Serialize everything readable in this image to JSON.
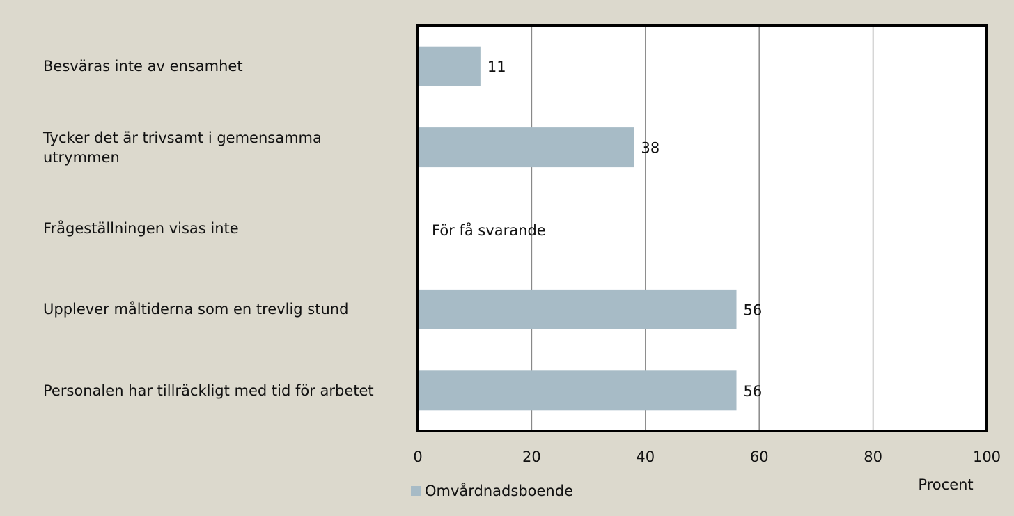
{
  "chart_data": {
    "type": "bar",
    "orientation": "horizontal",
    "categories": [
      "Besväras inte av ensamhet",
      "Tycker det är trivsamt i gemensamma utrymmen",
      "Frågeställningen visas inte",
      "Upplever måltiderna som en trevlig stund",
      "Personalen har tillräckligt med tid för arbetet"
    ],
    "series": [
      {
        "name": "Omvårdnadsboende",
        "color": "#a7bbc6",
        "values": [
          11,
          38,
          null,
          56,
          56
        ]
      }
    ],
    "annotation": "För få svarande",
    "xlabel": "Procent",
    "xlim": [
      0,
      100
    ],
    "xticks": [
      0,
      20,
      40,
      60,
      80,
      100
    ],
    "grid": true
  }
}
